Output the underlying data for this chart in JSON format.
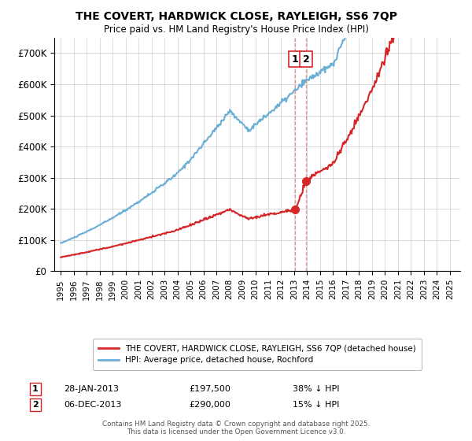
{
  "title": "THE COVERT, HARDWICK CLOSE, RAYLEIGH, SS6 7QP",
  "subtitle": "Price paid vs. HM Land Registry's House Price Index (HPI)",
  "legend_line1": "THE COVERT, HARDWICK CLOSE, RAYLEIGH, SS6 7QP (detached house)",
  "legend_line2": "HPI: Average price, detached house, Rochford",
  "annotation1_date": "28-JAN-2013",
  "annotation1_price": "£197,500",
  "annotation1_hpi": "38% ↓ HPI",
  "annotation2_date": "06-DEC-2013",
  "annotation2_price": "£290,000",
  "annotation2_hpi": "15% ↓ HPI",
  "footer": "Contains HM Land Registry data © Crown copyright and database right 2025.\nThis data is licensed under the Open Government Licence v3.0.",
  "hpi_color": "#6baed6",
  "price_color": "#d62728",
  "ylim": [
    0,
    750000
  ],
  "yticks": [
    0,
    100000,
    200000,
    300000,
    400000,
    500000,
    600000,
    700000
  ],
  "ytick_labels": [
    "£0",
    "£100K",
    "£200K",
    "£300K",
    "£400K",
    "£500K",
    "£600K",
    "£700K"
  ],
  "sale1_year": 2013.08,
  "sale1_price": 197500,
  "sale2_year": 2013.92,
  "sale2_price": 290000
}
